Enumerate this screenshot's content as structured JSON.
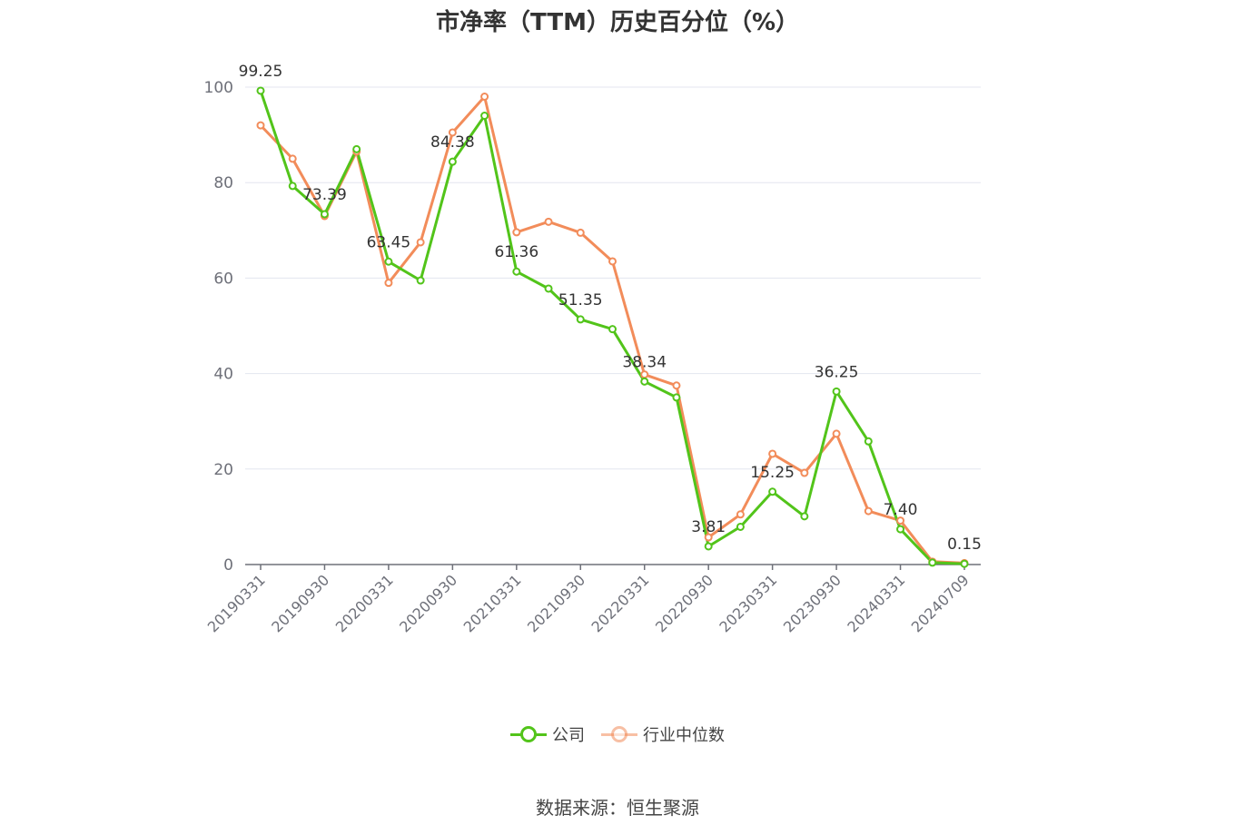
{
  "title": "市净率（TTM）历史百分位（%）",
  "source": "数据来源：恒生聚源",
  "colors": {
    "company": "#52c41a",
    "industry": "#f28c5a",
    "grid": "#e3e6ef",
    "axis": "#6e7079",
    "label": "#333333"
  },
  "legend": {
    "company": "公司",
    "industry": "行业中位数"
  },
  "chart_data": {
    "type": "line",
    "x": [
      "20190331",
      "20190630",
      "20190930",
      "20191231",
      "20200331",
      "20200630",
      "20200930",
      "20201231",
      "20210331",
      "20210630",
      "20210930",
      "20211231",
      "20220331",
      "20220630",
      "20220930",
      "20221231",
      "20230331",
      "20230630",
      "20230930",
      "20231231",
      "20240331",
      "20240630",
      "20240709"
    ],
    "x_tick_labels": [
      "20190331",
      "20190930",
      "20200331",
      "20200930",
      "20210331",
      "20210930",
      "20220331",
      "20220930",
      "20230331",
      "20230930",
      "20240331",
      "20240709"
    ],
    "ylim": [
      0,
      100
    ],
    "y_ticks": [
      0,
      20,
      40,
      60,
      80,
      100
    ],
    "grid": true,
    "legend_position": "bottom-center",
    "series": [
      {
        "name": "公司",
        "values": [
          99.25,
          79.3,
          73.39,
          87.0,
          63.45,
          59.5,
          84.38,
          94.0,
          61.36,
          57.8,
          51.35,
          49.3,
          38.34,
          35.0,
          3.81,
          7.9,
          15.25,
          10.1,
          36.25,
          25.8,
          7.4,
          0.4,
          0.15
        ]
      },
      {
        "name": "行业中位数",
        "values": [
          92.0,
          85.0,
          73.0,
          86.5,
          59.0,
          67.5,
          90.5,
          98.0,
          69.6,
          71.8,
          69.5,
          63.5,
          39.8,
          37.5,
          5.7,
          10.5,
          23.2,
          19.2,
          27.4,
          11.2,
          9.2,
          0.6,
          0.3
        ]
      }
    ],
    "data_labels": [
      {
        "index": 0,
        "text": "99.25"
      },
      {
        "index": 2,
        "text": "73.39"
      },
      {
        "index": 4,
        "text": "63.45"
      },
      {
        "index": 6,
        "text": "84.38"
      },
      {
        "index": 8,
        "text": "61.36"
      },
      {
        "index": 10,
        "text": "51.35"
      },
      {
        "index": 12,
        "text": "38.34"
      },
      {
        "index": 14,
        "text": "3.81"
      },
      {
        "index": 16,
        "text": "15.25"
      },
      {
        "index": 18,
        "text": "36.25"
      },
      {
        "index": 20,
        "text": "7.40"
      },
      {
        "index": 22,
        "text": "0.15"
      }
    ]
  }
}
